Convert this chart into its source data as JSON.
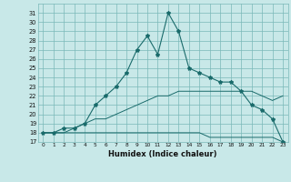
{
  "xlabel": "Humidex (Indice chaleur)",
  "bg_color": "#c8e8e8",
  "grid_color": "#7ab8b8",
  "line_color": "#1a6b6b",
  "xlim": [
    -0.5,
    23.5
  ],
  "ylim": [
    17,
    32
  ],
  "x_ticks": [
    0,
    1,
    2,
    3,
    4,
    5,
    6,
    7,
    8,
    9,
    10,
    11,
    12,
    13,
    14,
    15,
    16,
    17,
    18,
    19,
    20,
    21,
    22,
    23
  ],
  "y_ticks": [
    17,
    18,
    19,
    20,
    21,
    22,
    23,
    24,
    25,
    26,
    27,
    28,
    29,
    30,
    31
  ],
  "series1": [
    18,
    18,
    18.5,
    18.5,
    19,
    21,
    22,
    23,
    24.5,
    27,
    28.5,
    26.5,
    31,
    29,
    25,
    24.5,
    24,
    23.5,
    23.5,
    22.5,
    21,
    20.5,
    19.5,
    17
  ],
  "series2": [
    18,
    18,
    18,
    18,
    18,
    18,
    18,
    18,
    18,
    18,
    18,
    18,
    18,
    18,
    18,
    18,
    17.5,
    17.5,
    17.5,
    17.5,
    17.5,
    17.5,
    17.5,
    17
  ],
  "series3": [
    18,
    18,
    18,
    18.5,
    19,
    19.5,
    19.5,
    20,
    20.5,
    21,
    21.5,
    22,
    22,
    22.5,
    22.5,
    22.5,
    22.5,
    22.5,
    22.5,
    22.5,
    22.5,
    22,
    21.5,
    22
  ]
}
